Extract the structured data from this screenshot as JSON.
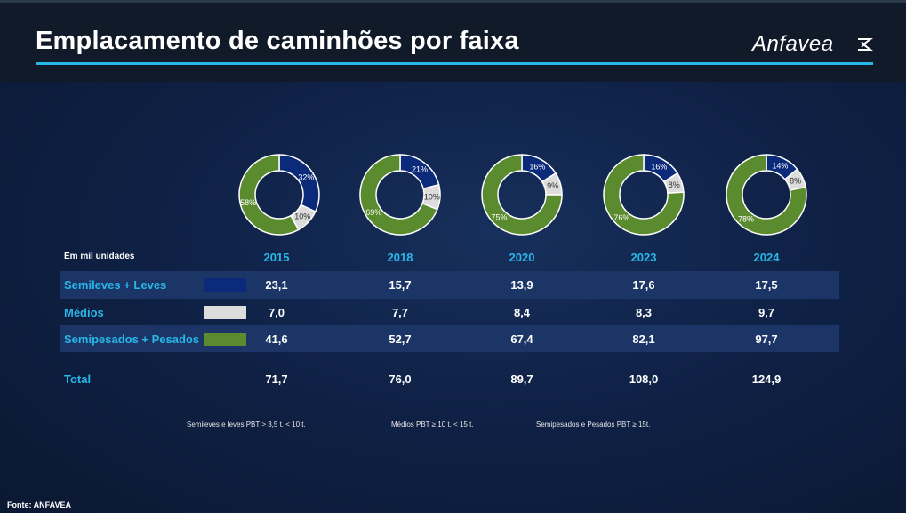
{
  "title": "Emplacamento de caminhões por faixa",
  "logo_text": "Anfavea",
  "logo_icon": "anfavea-mark-icon",
  "unit_label": "Em mil unidades",
  "source": "Fonte: ANFAVEA",
  "colors": {
    "title_underline": "#29b6e8",
    "semileves": "#0b2a7a",
    "medios": "#dcdcdc",
    "semipesados": "#5a8b2e",
    "label": "#29b6e8",
    "band": "#1b3566"
  },
  "notes": [
    "Semileves  e leves  PBT > 3,5 t. < 10 t.",
    "Médios      PBT ≥ 10 t. < 15 t.",
    "Semipesados e Pesados    PBT ≥ 15t."
  ],
  "chart_data": [
    {
      "type": "pie",
      "style": "donut",
      "categories": [
        "Semileves + Leves",
        "Médios",
        "Semipesados + Pesados"
      ],
      "series": [
        {
          "name": "2015",
          "values": [
            32,
            10,
            58
          ],
          "labels": [
            "32%",
            "10%",
            "58%"
          ]
        },
        {
          "name": "2018",
          "values": [
            21,
            10,
            69
          ],
          "labels": [
            "21%",
            "10%",
            "69%"
          ]
        },
        {
          "name": "2020",
          "values": [
            16,
            9,
            75
          ],
          "labels": [
            "16%",
            "9%",
            "75%"
          ]
        },
        {
          "name": "2023",
          "values": [
            16,
            8,
            76
          ],
          "labels": [
            "16%",
            "8%",
            "76%"
          ]
        },
        {
          "name": "2024",
          "values": [
            14,
            8,
            78
          ],
          "labels": [
            "14%",
            "8%",
            "78%"
          ]
        }
      ]
    },
    {
      "type": "table",
      "years": [
        "2015",
        "2018",
        "2020",
        "2023",
        "2024"
      ],
      "rows": [
        {
          "label": "Semileves + Leves",
          "values": [
            "23,1",
            "15,7",
            "13,9",
            "17,6",
            "17,5"
          ]
        },
        {
          "label": "Médios",
          "values": [
            "7,0",
            "7,7",
            "8,4",
            "8,3",
            "9,7"
          ]
        },
        {
          "label": "Semipesados + Pesados",
          "values": [
            "41,6",
            "52,7",
            "67,4",
            "82,1",
            "97,7"
          ]
        }
      ],
      "total": {
        "label": "Total",
        "values": [
          "71,7",
          "76,0",
          "89,7",
          "108,0",
          "124,9"
        ]
      }
    }
  ]
}
